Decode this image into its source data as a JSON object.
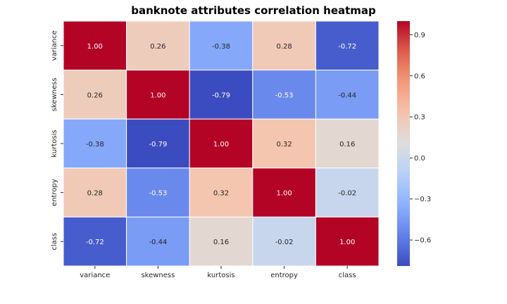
{
  "chart_data": {
    "type": "heatmap",
    "title": "banknote attributes correlation heatmap",
    "x_categories": [
      "variance",
      "skewness",
      "kurtosis",
      "entropy",
      "class"
    ],
    "y_categories": [
      "variance",
      "skewness",
      "kurtosis",
      "entropy",
      "class"
    ],
    "values": [
      [
        1.0,
        0.26,
        -0.38,
        0.28,
        -0.72
      ],
      [
        0.26,
        1.0,
        -0.79,
        -0.53,
        -0.44
      ],
      [
        -0.38,
        -0.79,
        1.0,
        0.32,
        0.16
      ],
      [
        0.28,
        -0.53,
        0.32,
        1.0,
        -0.02
      ],
      [
        -0.72,
        -0.44,
        0.16,
        -0.02,
        1.0
      ]
    ],
    "value_format": "2 decimals",
    "colormap": "coolwarm",
    "color_range": [
      -0.79,
      1.0
    ],
    "colorbar_ticks": [
      "0.9",
      "0.6",
      "0.3",
      "0.0",
      "−0.3",
      "−0.6"
    ],
    "colorbar_tick_values": [
      0.9,
      0.6,
      0.3,
      0.0,
      -0.3,
      -0.6
    ],
    "grid_line_color": "#ffffff"
  }
}
